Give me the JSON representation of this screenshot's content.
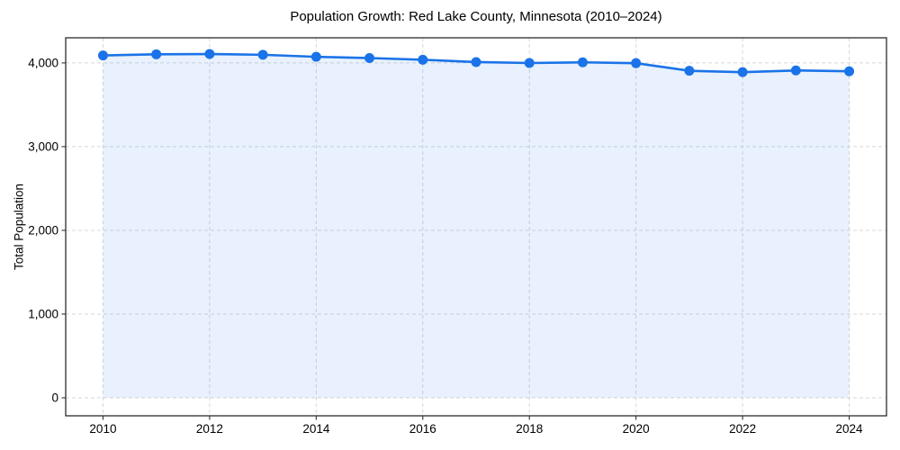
{
  "chart_data": {
    "type": "area",
    "title": "Population Growth: Red Lake County, Minnesota (2010–2024)",
    "xlabel": "",
    "ylabel": "Total Population",
    "series_name": "Total Population",
    "x": [
      2010,
      2011,
      2012,
      2013,
      2014,
      2015,
      2016,
      2017,
      2018,
      2019,
      2020,
      2021,
      2022,
      2023,
      2024
    ],
    "values": [
      4089,
      4103,
      4106,
      4097,
      4073,
      4058,
      4038,
      4010,
      3999,
      4007,
      3997,
      3906,
      3890,
      3910,
      3900
    ],
    "baseline": 0,
    "xlim": [
      2009.3,
      2024.7
    ],
    "ylim": [
      -215,
      4300
    ],
    "xticks": [
      2010,
      2012,
      2014,
      2016,
      2018,
      2020,
      2022,
      2024
    ],
    "xtick_labels": [
      "2010",
      "2012",
      "2014",
      "2016",
      "2018",
      "2020",
      "2022",
      "2024"
    ],
    "yticks": [
      0,
      1000,
      2000,
      3000,
      4000
    ],
    "ytick_labels": [
      "0",
      "1,000",
      "2,000",
      "3,000",
      "4,000"
    ],
    "grid": true,
    "grid_style": "dashed",
    "legend": "none",
    "marker": "circle",
    "colors": {
      "line": "#1a73e8",
      "fill": "rgba(26,115,232,0.10)",
      "grid": "#d7d7d7",
      "spine": "#1a1a1a",
      "tick": "#333333",
      "text": "#000000",
      "background": "#ffffff"
    }
  }
}
